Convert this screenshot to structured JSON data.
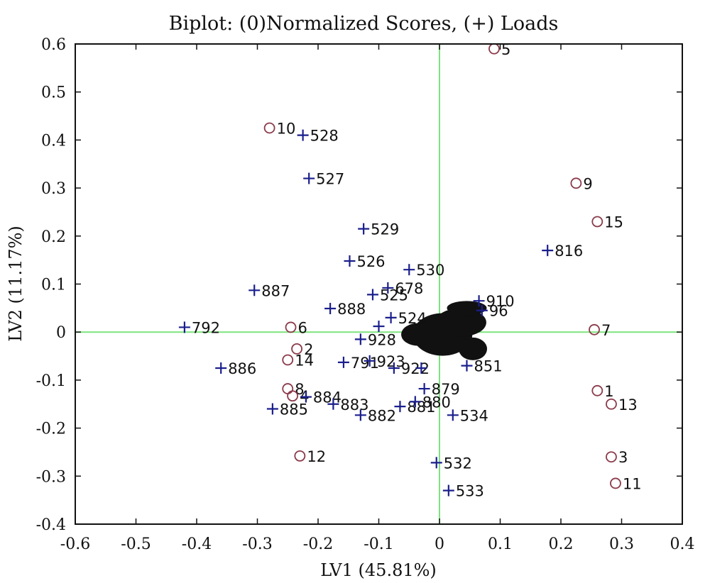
{
  "chart_data": {
    "type": "scatter",
    "title": "Biplot: (0)Normalized Scores, (+) Loads",
    "xlabel": "LV1 (45.81%)",
    "ylabel": "LV2 (11.17%)",
    "xlim": [
      -0.6,
      0.4
    ],
    "ylim": [
      -0.4,
      0.6
    ],
    "xticks": [
      "-0.6",
      "-0.5",
      "-0.4",
      "-0.3",
      "-0.2",
      "-0.1",
      "0",
      "0.1",
      "0.2",
      "0.3",
      "0.4"
    ],
    "yticks": [
      "0.6",
      "0.5",
      "0.4",
      "0.3",
      "0.2",
      "0.1",
      "0",
      "-0.1",
      "-0.2",
      "-0.3",
      "-0.4"
    ],
    "reference_lines": {
      "x": 0,
      "y": 0,
      "color": "#7de37d"
    },
    "colors": {
      "scores": "#8b3a4a",
      "loads": "#1a1f8c",
      "cluster": "#111111"
    },
    "series": [
      {
        "name": "Normalized Scores",
        "marker": "circle",
        "points": [
          {
            "label": "5",
            "x": 0.09,
            "y": 0.59
          },
          {
            "label": "10",
            "x": -0.28,
            "y": 0.425
          },
          {
            "label": "9",
            "x": 0.225,
            "y": 0.31
          },
          {
            "label": "15",
            "x": 0.26,
            "y": 0.23
          },
          {
            "label": "6",
            "x": -0.245,
            "y": 0.01
          },
          {
            "label": "7",
            "x": 0.255,
            "y": 0.005
          },
          {
            "label": "2",
            "x": -0.235,
            "y": -0.035
          },
          {
            "label": "14",
            "x": -0.25,
            "y": -0.058
          },
          {
            "label": "8",
            "x": -0.25,
            "y": -0.118
          },
          {
            "label": "4",
            "x": -0.242,
            "y": -0.133
          },
          {
            "label": "1",
            "x": 0.26,
            "y": -0.122
          },
          {
            "label": "13",
            "x": 0.283,
            "y": -0.15
          },
          {
            "label": "12",
            "x": -0.23,
            "y": -0.258
          },
          {
            "label": "3",
            "x": 0.283,
            "y": -0.26
          },
          {
            "label": "11",
            "x": 0.29,
            "y": -0.315
          }
        ]
      },
      {
        "name": "Loads",
        "marker": "plus",
        "points": [
          {
            "label": "528",
            "x": -0.225,
            "y": 0.41
          },
          {
            "label": "527",
            "x": -0.215,
            "y": 0.32
          },
          {
            "label": "529",
            "x": -0.125,
            "y": 0.215
          },
          {
            "label": "526",
            "x": -0.148,
            "y": 0.148
          },
          {
            "label": "530",
            "x": -0.05,
            "y": 0.13
          },
          {
            "label": "816",
            "x": 0.178,
            "y": 0.17
          },
          {
            "label": "887",
            "x": -0.305,
            "y": 0.087
          },
          {
            "label": "678",
            "x": -0.085,
            "y": 0.092
          },
          {
            "label": "525",
            "x": -0.11,
            "y": 0.078
          },
          {
            "label": "888",
            "x": -0.18,
            "y": 0.049
          },
          {
            "label": "524",
            "x": -0.08,
            "y": 0.03
          },
          {
            "label": "792",
            "x": -0.42,
            "y": 0.01
          },
          {
            "label": "886",
            "x": -0.36,
            "y": -0.075
          },
          {
            "label": "791",
            "x": -0.158,
            "y": -0.063
          },
          {
            "label": "923",
            "x": -0.115,
            "y": -0.06
          },
          {
            "label": "884",
            "x": -0.22,
            "y": -0.135
          },
          {
            "label": "883",
            "x": -0.175,
            "y": -0.15
          },
          {
            "label": "885",
            "x": -0.275,
            "y": -0.16
          },
          {
            "label": "882",
            "x": -0.13,
            "y": -0.173
          },
          {
            "label": "881",
            "x": -0.065,
            "y": -0.155
          },
          {
            "label": "880",
            "x": -0.04,
            "y": -0.145
          },
          {
            "label": "879",
            "x": -0.025,
            "y": -0.118
          },
          {
            "label": "534",
            "x": 0.022,
            "y": -0.173
          },
          {
            "label": "532",
            "x": -0.005,
            "y": -0.272
          },
          {
            "label": "533",
            "x": 0.015,
            "y": -0.33
          },
          {
            "label": "928",
            "x": -0.13,
            "y": -0.015
          },
          {
            "label": "922",
            "x": -0.075,
            "y": -0.075
          },
          {
            "label": "910",
            "x": 0.065,
            "y": 0.065
          },
          {
            "label": "96",
            "x": 0.07,
            "y": 0.045
          },
          {
            "label": "851",
            "x": 0.045,
            "y": -0.07
          },
          {
            "label": "",
            "x": -0.1,
            "y": 0.012
          },
          {
            "label": "",
            "x": -0.03,
            "y": -0.075
          }
        ]
      }
    ]
  }
}
